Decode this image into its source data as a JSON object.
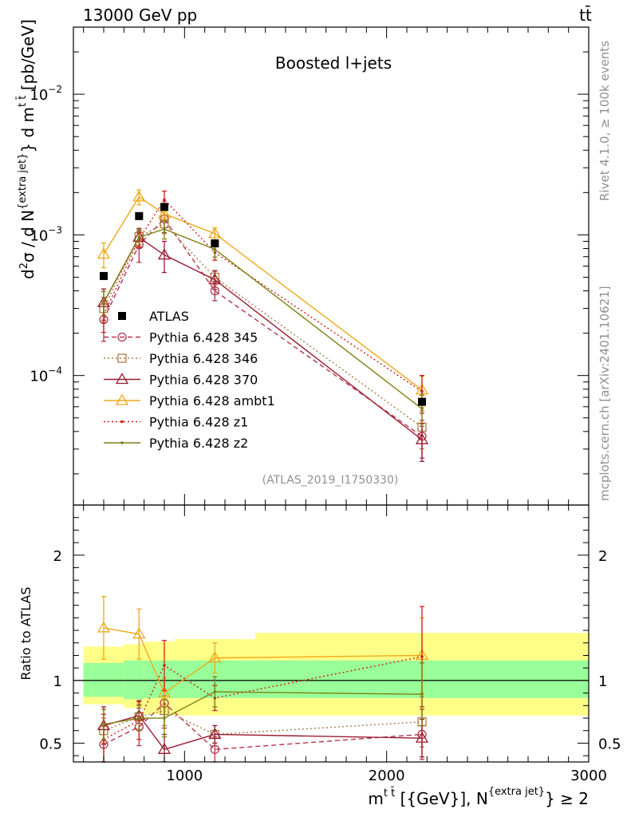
{
  "header": {
    "left": "13000 GeV pp",
    "right": "tt̄"
  },
  "side_labels": {
    "rivet": "Rivet 4.1.0, ≥ 100k events",
    "mcplots": "mcplots.cern.ch [arXiv:2401.10621]"
  },
  "chart_data": [
    {
      "panel": "main",
      "type": "line",
      "title": "Boosted l+jets",
      "annotation": "(ATLAS_2019_I1750330)",
      "ylabel": "d²σ / d N{extra jet} d m{t t̄} [pb/GeV]",
      "ylabel_parts": {
        "a": "d",
        "b": "2",
        "c": "σ / d N",
        "d": "{extra jet}",
        "e": "} d m",
        "f": "t t̄",
        "g": " [pb/GeV]"
      },
      "yscale": "log",
      "ylim": [
        1.2e-05,
        0.03
      ],
      "yticks": [
        {
          "value": 0.01,
          "base": "10",
          "exp": "−2"
        },
        {
          "value": 0.001,
          "base": "10",
          "exp": "−3"
        },
        {
          "value": 0.0001,
          "base": "10",
          "exp": "−4"
        }
      ],
      "xlim": [
        450,
        3000
      ],
      "legend_position": "center-left",
      "series": [
        {
          "name": "ATLAS",
          "style": "data",
          "color": "#000000",
          "x": [
            600,
            775,
            900,
            1150,
            2175
          ],
          "values": [
            0.00051,
            0.00136,
            0.00158,
            0.00087,
            6.5e-05
          ]
        },
        {
          "name": "Pythia 6.428 345",
          "color": "#b2354a",
          "dash": "6,4",
          "marker": "circle",
          "x": [
            600,
            775,
            900,
            1150,
            2175
          ],
          "values": [
            0.00025,
            0.00085,
            0.0013,
            0.0004,
            3.7e-05
          ],
          "err": [
            0.3,
            0.25,
            0.2,
            0.15,
            0.3
          ]
        },
        {
          "name": "Pythia 6.428 346",
          "color": "#b07b44",
          "dash": "2,3",
          "marker": "square",
          "x": [
            600,
            775,
            900,
            1150,
            2175
          ],
          "values": [
            0.0003,
            0.00097,
            0.0012,
            0.0005,
            4.3e-05
          ],
          "err": [
            0.2,
            0.15,
            0.15,
            0.12,
            0.3
          ]
        },
        {
          "name": "Pythia 6.428 370",
          "color": "#9b1b30",
          "dash": "",
          "marker": "triangle",
          "x": [
            600,
            775,
            900,
            1150,
            2175
          ],
          "values": [
            0.00033,
            0.00096,
            0.00072,
            0.00048,
            3.5e-05
          ],
          "err": [
            0.25,
            0.15,
            0.25,
            0.15,
            0.3
          ]
        },
        {
          "name": "Pythia 6.428 ambt1",
          "color": "#f0a818",
          "dash": "",
          "marker": "triangle",
          "x": [
            600,
            775,
            900,
            1150,
            2175
          ],
          "values": [
            0.00073,
            0.00186,
            0.00141,
            0.00102,
            7.9e-05
          ],
          "err": [
            0.2,
            0.12,
            0.1,
            0.1,
            0.25
          ]
        },
        {
          "name": "Pythia 6.428 z1",
          "color": "#d0201a",
          "dash": "2,3",
          "marker": "dot",
          "x": [
            600,
            775,
            900,
            1150,
            2175
          ],
          "values": [
            0.00027,
            0.00093,
            0.00178,
            0.00075,
            7.7e-05
          ],
          "err": [
            0.25,
            0.12,
            0.15,
            0.12,
            0.3
          ]
        },
        {
          "name": "Pythia 6.428 z2",
          "color": "#7f7f10",
          "dash": "",
          "marker": "dot",
          "x": [
            600,
            775,
            900,
            1150,
            2175
          ],
          "values": [
            0.00033,
            0.00096,
            0.0011,
            0.00079,
            5.8e-05
          ],
          "err": [
            0.2,
            0.12,
            0.15,
            0.12,
            0.25
          ]
        }
      ]
    },
    {
      "panel": "ratio",
      "type": "line",
      "ylabel": "Ratio to ATLAS",
      "ylim": [
        0.35,
        2.4
      ],
      "yticks": [
        {
          "value": 0.5,
          "label": "0.5"
        },
        {
          "value": 1,
          "label": "1"
        },
        {
          "value": 2,
          "label": "2"
        }
      ],
      "xlabel": "m{t t̄} [{GeV}], N{extra jet} ≥ 2",
      "xlabel_parts": {
        "a": "m",
        "b": "t t̄",
        "c": " [{GeV}], N",
        "d": "{extra jet}",
        "e": "} ≥ 2"
      },
      "xlim": [
        450,
        3000
      ],
      "xticks": [
        {
          "value": 1000,
          "label": "1000"
        },
        {
          "value": 2000,
          "label": "2000"
        },
        {
          "value": 3000,
          "label": "3000"
        }
      ],
      "bands": [
        {
          "x": [
            500,
            700,
            800,
            950,
            1350,
            3000
          ],
          "inner": [
            0.87,
            0.85,
            0.86,
            0.86,
            0.86
          ],
          "inner_hi": [
            1.14,
            1.16,
            1.16,
            1.16,
            1.16
          ],
          "outer": [
            0.81,
            0.78,
            0.73,
            0.72,
            0.72
          ],
          "outer_hi": [
            1.27,
            1.29,
            1.31,
            1.33,
            1.38
          ]
        }
      ],
      "series": [
        {
          "name": "Pythia 6.428 345",
          "color": "#b2354a",
          "dash": "6,4",
          "marker": "circle",
          "x": [
            600,
            775,
            900,
            1150,
            2175
          ],
          "values": [
            0.49,
            0.63,
            0.82,
            0.45,
            0.57
          ],
          "err": [
            0.15,
            0.15,
            0.2,
            0.1,
            0.2
          ]
        },
        {
          "name": "Pythia 6.428 346",
          "color": "#b07b44",
          "dash": "2,3",
          "marker": "square",
          "x": [
            600,
            775,
            900,
            1150,
            2175
          ],
          "values": [
            0.6,
            0.71,
            0.76,
            0.57,
            0.67
          ],
          "err": [
            0.1,
            0.1,
            0.12,
            0.07,
            0.2
          ]
        },
        {
          "name": "Pythia 6.428 370",
          "color": "#9b1b30",
          "dash": "",
          "marker": "triangle",
          "x": [
            600,
            775,
            900,
            1150,
            2175
          ],
          "values": [
            0.64,
            0.72,
            0.45,
            0.57,
            0.54
          ],
          "err": [
            0.15,
            0.12,
            0.12,
            0.07,
            0.15
          ]
        },
        {
          "name": "Pythia 6.428 ambt1",
          "color": "#f0a818",
          "dash": "",
          "marker": "triangle",
          "x": [
            600,
            775,
            900,
            1150,
            2175
          ],
          "values": [
            1.42,
            1.37,
            0.9,
            1.18,
            1.2
          ],
          "err": [
            0.25,
            0.2,
            0.12,
            0.12,
            0.3
          ]
        },
        {
          "name": "Pythia 6.428 z1",
          "color": "#d0201a",
          "dash": "2,3",
          "marker": "dot",
          "x": [
            600,
            775,
            900,
            1150,
            2175
          ],
          "values": [
            0.53,
            0.68,
            1.12,
            0.86,
            1.19
          ],
          "err": [
            0.2,
            0.15,
            0.2,
            0.1,
            0.4
          ]
        },
        {
          "name": "Pythia 6.428 z2",
          "color": "#7f7f10",
          "dash": "",
          "marker": "dot",
          "x": [
            600,
            775,
            900,
            1150,
            2175
          ],
          "values": [
            0.65,
            0.7,
            0.7,
            0.91,
            0.89
          ],
          "err": [
            0.12,
            0.1,
            0.15,
            0.12,
            0.25
          ]
        }
      ]
    }
  ]
}
